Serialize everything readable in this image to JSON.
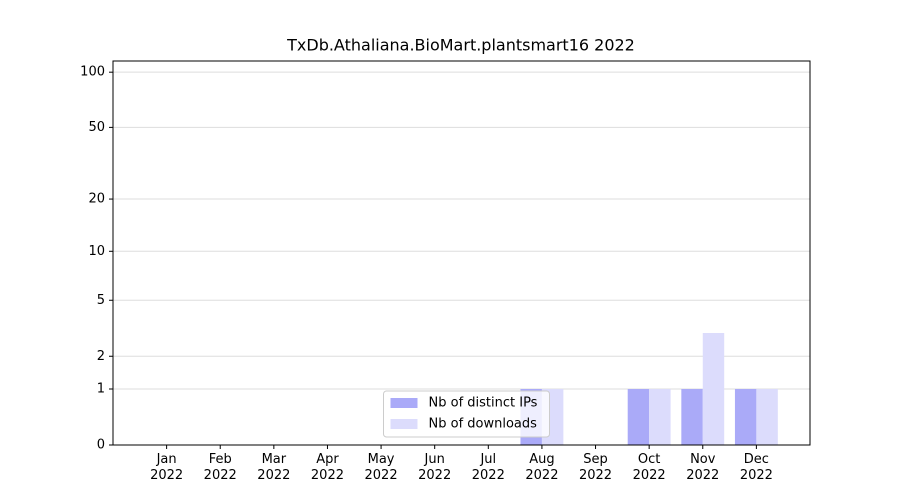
{
  "chart_data": {
    "type": "bar",
    "title": "TxDb.Athaliana.BioMart.plantsmart16 2022",
    "categories": [
      "Jan\n2022",
      "Feb\n2022",
      "Mar\n2022",
      "Apr\n2022",
      "May\n2022",
      "Jun\n2022",
      "Jul\n2022",
      "Aug\n2022",
      "Sep\n2022",
      "Oct\n2022",
      "Nov\n2022",
      "Dec\n2022"
    ],
    "series": [
      {
        "name": "Nb of distinct IPs",
        "color": "#aaaaf8",
        "values": [
          0,
          0,
          0,
          0,
          0,
          0,
          0,
          1,
          0,
          1,
          1,
          1
        ]
      },
      {
        "name": "Nb of downloads",
        "color": "#dcdcfc",
        "values": [
          0,
          0,
          0,
          0,
          0,
          0,
          0,
          1,
          0,
          1,
          3,
          1
        ]
      }
    ],
    "ylim": [
      0,
      115
    ],
    "yticks": [
      0,
      1,
      2,
      5,
      10,
      20,
      50,
      100
    ],
    "yscale": "log1p",
    "grid": true,
    "legend": "lower center"
  }
}
